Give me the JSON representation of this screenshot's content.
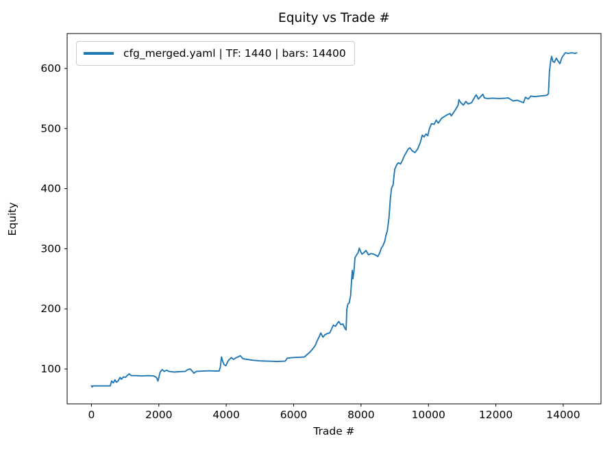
{
  "chart_data": {
    "type": "line",
    "title": "Equity vs Trade #",
    "xlabel": "Trade #",
    "ylabel": "Equity",
    "grid": false,
    "legend": {
      "position": "upper-left",
      "entries": [
        {
          "label": "cfg_merged.yaml | TF: 1440 | bars: 14400",
          "color": "#1f77b4"
        }
      ]
    },
    "xlim": [
      -720,
      15120
    ],
    "ylim": [
      42,
      658
    ],
    "xticks": [
      0,
      2000,
      4000,
      6000,
      8000,
      10000,
      12000,
      14000
    ],
    "yticks": [
      100,
      200,
      300,
      400,
      500,
      600
    ],
    "series": [
      {
        "name": "cfg_merged.yaml | TF: 1440 | bars: 14400",
        "color": "#1f77b4",
        "points": [
          [
            0,
            72
          ],
          [
            25,
            70
          ],
          [
            45,
            72
          ],
          [
            560,
            72
          ],
          [
            600,
            80
          ],
          [
            650,
            77
          ],
          [
            700,
            82
          ],
          [
            740,
            78
          ],
          [
            790,
            80
          ],
          [
            850,
            86
          ],
          [
            890,
            83
          ],
          [
            950,
            87
          ],
          [
            1010,
            86
          ],
          [
            1060,
            89
          ],
          [
            1120,
            92
          ],
          [
            1180,
            89
          ],
          [
            1300,
            89
          ],
          [
            1500,
            88.5
          ],
          [
            1700,
            89
          ],
          [
            1850,
            88.5
          ],
          [
            1930,
            86
          ],
          [
            1975,
            80
          ],
          [
            2040,
            95
          ],
          [
            2100,
            99
          ],
          [
            2160,
            96
          ],
          [
            2230,
            98
          ],
          [
            2300,
            96
          ],
          [
            2450,
            95
          ],
          [
            2600,
            95.5
          ],
          [
            2780,
            96
          ],
          [
            2860,
            99
          ],
          [
            2930,
            100
          ],
          [
            2990,
            96.5
          ],
          [
            3040,
            93
          ],
          [
            3110,
            96
          ],
          [
            3300,
            96.5
          ],
          [
            3500,
            97
          ],
          [
            3700,
            96.5
          ],
          [
            3790,
            96.5
          ],
          [
            3825,
            103
          ],
          [
            3860,
            120
          ],
          [
            3900,
            112
          ],
          [
            3940,
            107
          ],
          [
            3990,
            105.5
          ],
          [
            4060,
            114
          ],
          [
            4150,
            119
          ],
          [
            4220,
            116
          ],
          [
            4300,
            119
          ],
          [
            4420,
            122
          ],
          [
            4500,
            117
          ],
          [
            4620,
            116
          ],
          [
            4800,
            114.5
          ],
          [
            5000,
            113.5
          ],
          [
            5250,
            113
          ],
          [
            5500,
            112.5
          ],
          [
            5750,
            113
          ],
          [
            5810,
            118
          ],
          [
            5950,
            119
          ],
          [
            6150,
            119.5
          ],
          [
            6320,
            120
          ],
          [
            6400,
            124
          ],
          [
            6480,
            128
          ],
          [
            6560,
            133
          ],
          [
            6640,
            139
          ],
          [
            6700,
            147
          ],
          [
            6760,
            154
          ],
          [
            6805,
            160
          ],
          [
            6870,
            153
          ],
          [
            6930,
            157
          ],
          [
            7000,
            159
          ],
          [
            7070,
            160
          ],
          [
            7120,
            166
          ],
          [
            7180,
            173
          ],
          [
            7240,
            171
          ],
          [
            7300,
            176
          ],
          [
            7340,
            179
          ],
          [
            7400,
            174
          ],
          [
            7460,
            175
          ],
          [
            7520,
            168
          ],
          [
            7555,
            165
          ],
          [
            7580,
            200
          ],
          [
            7610,
            208
          ],
          [
            7650,
            210
          ],
          [
            7690,
            222
          ],
          [
            7720,
            248
          ],
          [
            7740,
            264
          ],
          [
            7760,
            250
          ],
          [
            7790,
            262
          ],
          [
            7820,
            285
          ],
          [
            7870,
            290
          ],
          [
            7910,
            293
          ],
          [
            7950,
            301
          ],
          [
            7990,
            295
          ],
          [
            8030,
            291
          ],
          [
            8090,
            294
          ],
          [
            8150,
            297
          ],
          [
            8220,
            290
          ],
          [
            8300,
            292
          ],
          [
            8380,
            291
          ],
          [
            8450,
            289
          ],
          [
            8500,
            287
          ],
          [
            8560,
            294
          ],
          [
            8600,
            301
          ],
          [
            8650,
            305
          ],
          [
            8700,
            312
          ],
          [
            8740,
            322
          ],
          [
            8780,
            330
          ],
          [
            8830,
            352
          ],
          [
            8870,
            383
          ],
          [
            8905,
            401
          ],
          [
            8950,
            406
          ],
          [
            9000,
            432
          ],
          [
            9060,
            440
          ],
          [
            9110,
            443
          ],
          [
            9170,
            441
          ],
          [
            9230,
            447
          ],
          [
            9280,
            454
          ],
          [
            9350,
            461
          ],
          [
            9400,
            466
          ],
          [
            9450,
            468
          ],
          [
            9520,
            463
          ],
          [
            9600,
            460
          ],
          [
            9680,
            466
          ],
          [
            9760,
            477
          ],
          [
            9820,
            489
          ],
          [
            9870,
            486
          ],
          [
            9930,
            491
          ],
          [
            9980,
            488
          ],
          [
            10030,
            500
          ],
          [
            10090,
            508
          ],
          [
            10170,
            507
          ],
          [
            10230,
            514
          ],
          [
            10290,
            509
          ],
          [
            10390,
            517
          ],
          [
            10530,
            522
          ],
          [
            10640,
            525
          ],
          [
            10680,
            521
          ],
          [
            10800,
            531
          ],
          [
            10880,
            539
          ],
          [
            10905,
            548
          ],
          [
            10960,
            543
          ],
          [
            11040,
            539
          ],
          [
            11110,
            545
          ],
          [
            11180,
            541
          ],
          [
            11280,
            543
          ],
          [
            11390,
            554
          ],
          [
            11420,
            556
          ],
          [
            11480,
            549
          ],
          [
            11550,
            553
          ],
          [
            11615,
            557
          ],
          [
            11660,
            551
          ],
          [
            11750,
            550
          ],
          [
            11900,
            550.5
          ],
          [
            12100,
            550
          ],
          [
            12300,
            550.5
          ],
          [
            12370,
            551
          ],
          [
            12510,
            546
          ],
          [
            12640,
            547
          ],
          [
            12820,
            543
          ],
          [
            12880,
            552
          ],
          [
            12960,
            549
          ],
          [
            13040,
            554
          ],
          [
            13150,
            553
          ],
          [
            13300,
            554
          ],
          [
            13480,
            555
          ],
          [
            13530,
            556
          ],
          [
            13560,
            558
          ],
          [
            13590,
            595
          ],
          [
            13630,
            613
          ],
          [
            13655,
            620
          ],
          [
            13690,
            612
          ],
          [
            13735,
            610
          ],
          [
            13795,
            617
          ],
          [
            13850,
            612
          ],
          [
            13900,
            608
          ],
          [
            13960,
            618
          ],
          [
            14010,
            622
          ],
          [
            14060,
            626
          ],
          [
            14150,
            625
          ],
          [
            14250,
            626
          ],
          [
            14350,
            625
          ],
          [
            14400,
            626
          ]
        ]
      }
    ]
  },
  "colors": {
    "background": "#ffffff",
    "line": "#1f77b4",
    "axes": "#000000",
    "text": "#000000",
    "legend_border": "#cccccc"
  }
}
